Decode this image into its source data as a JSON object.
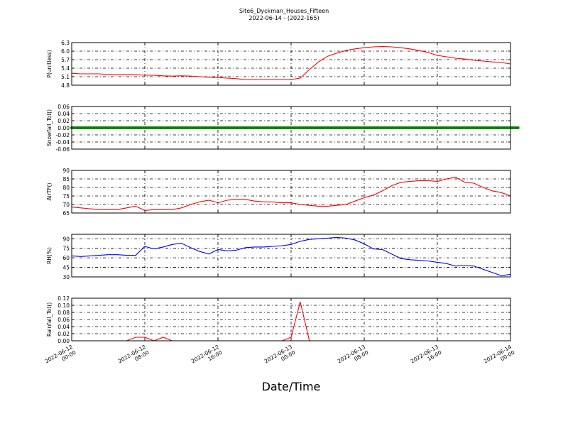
{
  "figure": {
    "title": "Site6_Dyckman_Houses_Fifteen",
    "subtitle": "2022-06-14 - (2022-165)",
    "xlabel": "Date/Time",
    "xlim": [
      "2022-06-12 00:00",
      "2022-06-14 00:00"
    ],
    "xticks": [
      "2022-06-12 00:00",
      "2022-06-12 08:00",
      "2022-06-12 16:00",
      "2022-06-13 00:00",
      "2022-06-13 08:00",
      "2022-06-13 16:00",
      "2022-06-14 00:00"
    ],
    "x": [
      "2022-06-12 00:00",
      "2022-06-12 01:00",
      "2022-06-12 02:00",
      "2022-06-12 03:00",
      "2022-06-12 04:00",
      "2022-06-12 05:00",
      "2022-06-12 06:00",
      "2022-06-12 07:00",
      "2022-06-12 08:00",
      "2022-06-12 09:00",
      "2022-06-12 10:00",
      "2022-06-12 11:00",
      "2022-06-12 12:00",
      "2022-06-12 13:00",
      "2022-06-12 14:00",
      "2022-06-12 15:00",
      "2022-06-12 16:00",
      "2022-06-12 17:00",
      "2022-06-12 18:00",
      "2022-06-12 19:00",
      "2022-06-12 20:00",
      "2022-06-12 21:00",
      "2022-06-12 22:00",
      "2022-06-12 23:00",
      "2022-06-13 00:00",
      "2022-06-13 01:00",
      "2022-06-13 02:00",
      "2022-06-13 03:00",
      "2022-06-13 04:00",
      "2022-06-13 05:00",
      "2022-06-13 06:00",
      "2022-06-13 07:00",
      "2022-06-13 08:00",
      "2022-06-13 09:00",
      "2022-06-13 10:00",
      "2022-06-13 11:00",
      "2022-06-13 12:00",
      "2022-06-13 13:00",
      "2022-06-13 14:00",
      "2022-06-13 15:00",
      "2022-06-13 16:00",
      "2022-06-13 17:00",
      "2022-06-13 18:00",
      "2022-06-13 19:00",
      "2022-06-13 20:00",
      "2022-06-13 21:00",
      "2022-06-13 22:00",
      "2022-06-13 23:00",
      "2022-06-14 00:00"
    ]
  },
  "chart_data": [
    {
      "type": "line",
      "ylabel": "P(unitless)",
      "color": "#ff0000",
      "ylim": [
        4.8,
        6.3
      ],
      "yticks": [
        4.8,
        5.1,
        5.4,
        5.7,
        {
          "value": 6,
          "label": "6.0"
        },
        6.3
      ],
      "grid": true,
      "values": [
        5.22,
        5.2,
        5.2,
        5.2,
        5.17,
        5.17,
        5.17,
        5.17,
        5.15,
        5.15,
        5.13,
        5.12,
        5.13,
        5.12,
        5.1,
        5.08,
        5.07,
        5.05,
        5.03,
        5.0,
        5.0,
        5.0,
        5.0,
        5.0,
        5.0,
        5.05,
        5.35,
        5.62,
        5.82,
        5.93,
        6.02,
        6.08,
        6.12,
        6.15,
        6.16,
        6.15,
        6.12,
        6.08,
        6.02,
        5.95,
        5.85,
        5.8,
        5.75,
        5.72,
        5.68,
        5.65,
        5.62,
        5.6,
        5.55
      ]
    },
    {
      "type": "line",
      "ylabel": "Snowfall_Tot()",
      "color": "#008000",
      "markers": true,
      "ylim": [
        -0.06,
        0.06
      ],
      "yticks": [
        -0.06,
        -0.04,
        -0.02,
        {
          "value": 0,
          "label": "0.00"
        },
        0.02,
        0.04,
        0.06
      ],
      "grid": true,
      "values": [
        0,
        0,
        0,
        0,
        0,
        0,
        0,
        0,
        0,
        0,
        0,
        0,
        0,
        0,
        0,
        0,
        0,
        0,
        0,
        0,
        0,
        0,
        0,
        0,
        0,
        0,
        0,
        0,
        0,
        0,
        0,
        0,
        0,
        0,
        0,
        0,
        0,
        0,
        0,
        0,
        0,
        0,
        0,
        0,
        0,
        0,
        0,
        0,
        0
      ]
    },
    {
      "type": "line",
      "ylabel": "AirTF()",
      "color": "#ff0000",
      "ylim": [
        65,
        90
      ],
      "yticks": [
        65,
        70,
        75,
        80,
        85,
        90
      ],
      "grid": true,
      "values": [
        68.5,
        68,
        67.5,
        67,
        67,
        67,
        68,
        69,
        66.5,
        67,
        67,
        67,
        68,
        70,
        71.5,
        72.5,
        71,
        72.5,
        73,
        73,
        72,
        71.5,
        71.5,
        71,
        71,
        70,
        69.5,
        69,
        69,
        69.5,
        70,
        72,
        74,
        75.5,
        78,
        81,
        83,
        83.5,
        84,
        84,
        83.5,
        85,
        86,
        83,
        82.5,
        80,
        78,
        77,
        75
      ]
    },
    {
      "type": "line",
      "ylabel": "RH(%)",
      "color": "#0000ff",
      "ylim": [
        30,
        97
      ],
      "yticks": [
        30,
        45,
        60,
        75,
        90
      ],
      "grid": true,
      "values": [
        63,
        62,
        63,
        64,
        65,
        65,
        64,
        64,
        78,
        74,
        77,
        81,
        83,
        76,
        70,
        66,
        73,
        71,
        72,
        76,
        77,
        77,
        78,
        79,
        81,
        86,
        89,
        90,
        91,
        92,
        91,
        88,
        82,
        74,
        73,
        66,
        59,
        57,
        56,
        55,
        53,
        51,
        47,
        48,
        47,
        42,
        37,
        32,
        34
      ]
    },
    {
      "type": "line",
      "ylabel": "Rainfall_Tot()",
      "color": "#ff0000",
      "ylim": [
        0,
        0.12
      ],
      "yticks": [
        {
          "value": 0,
          "label": "0.00"
        },
        0.02,
        0.04,
        0.06,
        0.08,
        {
          "value": 0.1,
          "label": "0.10"
        },
        0.12
      ],
      "grid": true,
      "values": [
        0,
        0,
        0,
        0,
        0,
        0,
        0,
        0.01,
        0.01,
        0,
        0.01,
        0,
        0,
        0,
        0,
        0,
        0,
        0,
        0,
        0,
        0,
        0,
        0,
        0,
        0.01,
        0.11,
        0,
        0,
        0,
        0,
        0,
        0,
        0,
        0,
        0,
        0,
        0,
        0,
        0,
        0,
        0,
        0,
        0,
        0,
        0,
        0,
        0,
        0,
        0
      ]
    }
  ]
}
